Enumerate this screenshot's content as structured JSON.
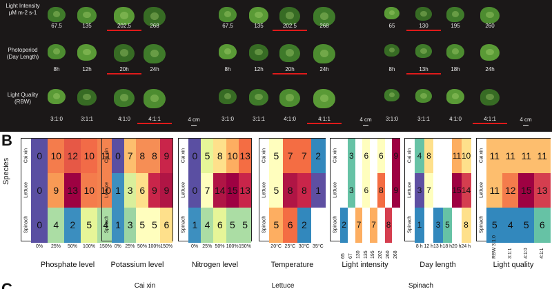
{
  "panelA": {
    "row_labels": [
      [
        "Light Intensity",
        "μM m-2 s-1"
      ],
      [
        "Photoperiod",
        "(Day Length)"
      ],
      [
        "Light Quality",
        "(RBW)"
      ]
    ],
    "groups": [
      {
        "name": "Cai xin",
        "rows": [
          {
            "labels": [
              "67.5",
              "135",
              "202.5",
              "268"
            ],
            "selected": 2
          },
          {
            "labels": [
              "8h",
              "12h",
              "20h",
              "24h"
            ],
            "selected": 2
          },
          {
            "labels": [
              "3:1:0",
              "3:1:1",
              "4:1:0",
              "4:1:1"
            ],
            "selected": 3
          }
        ],
        "scale": "4 cm"
      },
      {
        "name": "Lettuce",
        "rows": [
          {
            "labels": [
              "67.5",
              "135",
              "202.5",
              "268"
            ],
            "selected": 2
          },
          {
            "labels": [
              "8h",
              "12h",
              "20h",
              "24h"
            ],
            "selected": 2
          },
          {
            "labels": [
              "3:1:0",
              "3:1:1",
              "4:1:0",
              "4:1:1"
            ],
            "selected": 3
          }
        ],
        "scale": "4 cm"
      },
      {
        "name": "Spinach",
        "rows": [
          {
            "labels": [
              "65",
              "130",
              "195",
              "260"
            ],
            "selected": 1
          },
          {
            "labels": [
              "8h",
              "13h",
              "18h",
              "24h"
            ],
            "selected": 1
          },
          {
            "labels": [
              "3:1:0",
              "3:1:1",
              "4:1:0",
              "4:1:1"
            ],
            "selected": 3
          }
        ],
        "scale": "4 cm"
      }
    ],
    "plant_colors": [
      "#3f7a2a",
      "#4d8c30",
      "#5a9a36",
      "#376b24"
    ]
  },
  "panelB": {
    "letter": "B",
    "species_label": "Species",
    "species": [
      "Cai xin",
      "Lettuce",
      "Spinach"
    ]
  },
  "panelC": {
    "letter": "C",
    "labels": [
      "Cai xin",
      "Lettuce",
      "Spinach"
    ]
  },
  "chart_data": [
    {
      "type": "heatmap",
      "title": "Phosphate level",
      "x": [
        "0%",
        "25%",
        "50%",
        "100%",
        "150%"
      ],
      "rows": [
        [
          0,
          10,
          12,
          10,
          11
        ],
        [
          0,
          9,
          13,
          10,
          10
        ],
        [
          0,
          4,
          2,
          5,
          4
        ]
      ],
      "colors": [
        [
          "#5a4fa2",
          "#f47c4c",
          "#e65846",
          "#f26b47",
          "#f4834f"
        ],
        [
          "#5a4fa2",
          "#f89a55",
          "#9e0142",
          "#f47c4c",
          "#f4834f"
        ],
        [
          "#5a4fa2",
          "#abdda4",
          "#3b8ebf",
          "#e6f598",
          "#abdda4"
        ]
      ]
    },
    {
      "type": "heatmap",
      "title": "Potassium level",
      "x": [
        "0%",
        "25%",
        "50%",
        "100%",
        "150%"
      ],
      "rows": [
        [
          0,
          7,
          8,
          8,
          9
        ],
        [
          1,
          3,
          6,
          9,
          9
        ],
        [
          1,
          3,
          5,
          5,
          6
        ]
      ],
      "colors": [
        [
          "#5a4fa2",
          "#fdbe6e",
          "#f68e55",
          "#f68e55",
          "#c9254a"
        ],
        [
          "#3d8fbf",
          "#d9ef9b",
          "#fee08b",
          "#c9254a",
          "#b01545"
        ],
        [
          "#3d8fbf",
          "#9bd4a3",
          "#fffebe",
          "#fffebe",
          "#fee08b"
        ]
      ]
    },
    {
      "type": "heatmap",
      "title": "Nitrogen level",
      "x": [
        "0%",
        "25%",
        "50%",
        "100%",
        "150%"
      ],
      "rows": [
        [
          0,
          5,
          8,
          10,
          13
        ],
        [
          0,
          7,
          14,
          15,
          13
        ],
        [
          1,
          4,
          6,
          5,
          5
        ]
      ],
      "colors": [
        [
          "#5a4fa2",
          "#e6f598",
          "#fee08b",
          "#fdae61",
          "#f46d43"
        ],
        [
          "#5a4fa2",
          "#fffebe",
          "#b01545",
          "#9e0142",
          "#c9254a"
        ],
        [
          "#3d8fbf",
          "#abdda4",
          "#e6f598",
          "#abdda4",
          "#abdda4"
        ]
      ]
    },
    {
      "type": "heatmap",
      "title": "Temperature",
      "x": [
        "20°C",
        "25°C",
        "30°C",
        "35°C"
      ],
      "rows": [
        [
          5,
          7,
          7,
          2
        ],
        [
          5,
          8,
          8,
          1
        ],
        [
          5,
          6,
          2,
          null
        ]
      ],
      "colors": [
        [
          "#fffebe",
          "#f46d43",
          "#f46d43",
          "#3288bd"
        ],
        [
          "#fffebe",
          "#b01545",
          "#c9254a",
          "#5e4fa2"
        ],
        [
          "#fdae61",
          "#f46d43",
          "#3288bd",
          "#ffffff"
        ]
      ]
    },
    {
      "type": "heatmap",
      "title": "Light intensity",
      "x": [
        "65",
        "67",
        "130",
        "135",
        "195",
        "202",
        "260",
        "268"
      ],
      "rows": [
        [
          null,
          3,
          null,
          6,
          null,
          6,
          null,
          9
        ],
        [
          null,
          3,
          null,
          6,
          null,
          8,
          null,
          9
        ],
        [
          2,
          null,
          7,
          null,
          7,
          null,
          8,
          null
        ]
      ],
      "colors": [
        [
          "#ffffff",
          "#66c2a5",
          "#ffffff",
          "#fffebe",
          "#ffffff",
          "#fffebe",
          "#ffffff",
          "#9e0142"
        ],
        [
          "#ffffff",
          "#66c2a5",
          "#ffffff",
          "#fffebe",
          "#ffffff",
          "#f46d43",
          "#ffffff",
          "#9e0142"
        ],
        [
          "#3288bd",
          "#ffffff",
          "#fdae61",
          "#ffffff",
          "#fdae61",
          "#ffffff",
          "#d53e4f",
          "#ffffff"
        ]
      ]
    },
    {
      "type": "heatmap",
      "title": "Day length",
      "x": [
        "8 h",
        "12 h",
        "13 h",
        "18 h",
        "20 h",
        "24 h"
      ],
      "rows": [
        [
          4,
          8,
          null,
          null,
          11,
          10
        ],
        [
          3,
          7,
          null,
          null,
          15,
          14
        ],
        [
          1,
          null,
          3,
          5,
          null,
          8
        ]
      ],
      "colors": [
        [
          "#66c2a5",
          "#fee08b",
          "#ffffff",
          "#ffffff",
          "#fdae61",
          "#fee08b"
        ],
        [
          "#5e4fa2",
          "#fffebe",
          "#ffffff",
          "#ffffff",
          "#9e0142",
          "#d53e4f"
        ],
        [
          "#3288bd",
          "#ffffff",
          "#3288bd",
          "#66c2a5",
          "#ffffff",
          "#fee08b"
        ]
      ]
    },
    {
      "type": "heatmap",
      "title": "Light quality",
      "x": [
        "RBW 3:1:0",
        "3:1:1",
        "4:1:0",
        "4:1:1"
      ],
      "rows": [
        [
          11,
          11,
          11,
          11
        ],
        [
          11,
          12,
          15,
          13
        ],
        [
          5,
          4,
          5,
          6
        ]
      ],
      "colors": [
        [
          "#fdbe6e",
          "#fdbe6e",
          "#fdbe6e",
          "#fdbe6e"
        ],
        [
          "#fdbe6e",
          "#f47c4c",
          "#9e0142",
          "#d53e4f"
        ],
        [
          "#3288bd",
          "#3288bd",
          "#3288bd",
          "#66c2a5"
        ]
      ]
    }
  ]
}
